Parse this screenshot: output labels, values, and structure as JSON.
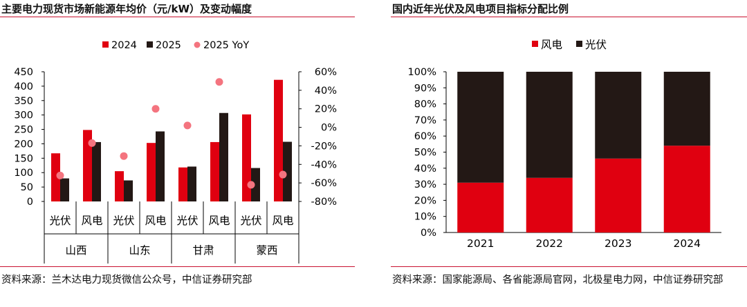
{
  "chart_data": [
    {
      "type": "bar",
      "title": "主要电力现货市场新能源年均价（元/kW）及变动幅度",
      "legend": [
        "2024",
        "2025",
        "2025 YoY"
      ],
      "legend_position": "top",
      "groups": [
        "山西",
        "山东",
        "甘肃",
        "蒙西"
      ],
      "categories": [
        "光伏",
        "风电",
        "光伏",
        "风电",
        "光伏",
        "风电",
        "光伏",
        "风电"
      ],
      "series": [
        {
          "name": "2024",
          "kind": "bar",
          "axis": "left",
          "color": "#e00010",
          "values": [
            167,
            248,
            105,
            203,
            118,
            206,
            302,
            422
          ]
        },
        {
          "name": "2025",
          "kind": "bar",
          "axis": "left",
          "color": "#231815",
          "values": [
            80,
            206,
            73,
            243,
            121,
            307,
            116,
            207
          ]
        },
        {
          "name": "2025 YoY",
          "kind": "scatter",
          "axis": "right",
          "color": "#f4747f",
          "values": [
            -52,
            -17,
            -31,
            20,
            2,
            49,
            -62,
            -51
          ]
        }
      ],
      "ylim_left": [
        0,
        450
      ],
      "yticks_left": [
        "0",
        "50",
        "100",
        "150",
        "200",
        "250",
        "300",
        "350",
        "400",
        "450"
      ],
      "ylim_right": [
        -80,
        60
      ],
      "yticks_right": [
        "-80%",
        "-60%",
        "-40%",
        "-20%",
        "0%",
        "20%",
        "40%",
        "60%"
      ],
      "source": "资料来源：兰木达电力现货微信公众号，中信证券研究部"
    },
    {
      "type": "bar",
      "stacked": true,
      "percent": true,
      "title": "国内近年光伏及风电项目指标分配比例",
      "legend": [
        "风电",
        "光伏"
      ],
      "legend_position": "top",
      "categories": [
        "2021",
        "2022",
        "2023",
        "2024"
      ],
      "series": [
        {
          "name": "风电",
          "color": "#e00010",
          "values": [
            31,
            34,
            46,
            54
          ]
        },
        {
          "name": "光伏",
          "color": "#231815",
          "values": [
            69,
            66,
            54,
            46
          ]
        }
      ],
      "ylim": [
        0,
        100
      ],
      "yticks": [
        "0%",
        "10%",
        "20%",
        "30%",
        "40%",
        "50%",
        "60%",
        "70%",
        "80%",
        "90%",
        "100%"
      ],
      "source": "资料来源：国家能源局、各省能源局官网，北极星电力网，中信证券研究部"
    }
  ]
}
